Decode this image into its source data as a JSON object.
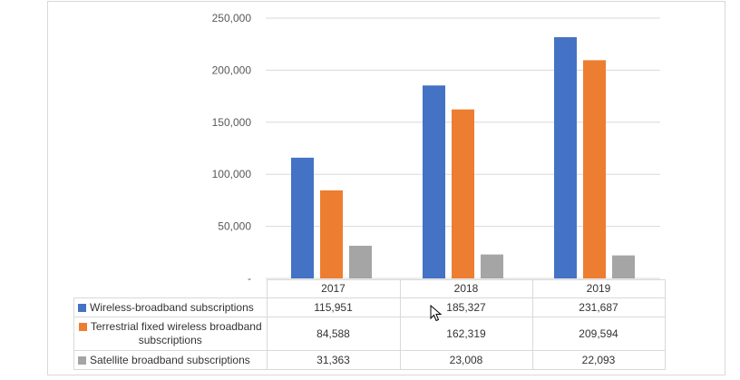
{
  "chart_data": {
    "type": "bar",
    "categories": [
      "2017",
      "2018",
      "2019"
    ],
    "series": [
      {
        "name": "Wireless-broadband subscriptions",
        "values": [
          115951,
          185327,
          231687
        ],
        "color": "#4472c4",
        "labels": [
          "115,951",
          "185,327",
          "231,687"
        ]
      },
      {
        "name": "Terrestrial fixed wireless broadband subscriptions",
        "values": [
          84588,
          162319,
          209594
        ],
        "color": "#ed7d31",
        "labels": [
          "84,588",
          "162,319",
          "209,594"
        ]
      },
      {
        "name": "Satellite broadband subscriptions",
        "values": [
          31363,
          23008,
          22093
        ],
        "color": "#a5a5a5",
        "labels": [
          "31,363",
          "23,008",
          "22,093"
        ]
      }
    ],
    "ylim": [
      0,
      250000
    ],
    "y_ticks": [
      "-",
      "50,000",
      "100,000",
      "150,000",
      "200,000",
      "250,000"
    ],
    "grid": true,
    "legend": "data-table"
  },
  "table": {
    "legend_labels": [
      "Wireless-broadband subscriptions",
      "Terrestrial fixed wireless broadband subscriptions",
      "Satellite broadband subscriptions"
    ]
  }
}
